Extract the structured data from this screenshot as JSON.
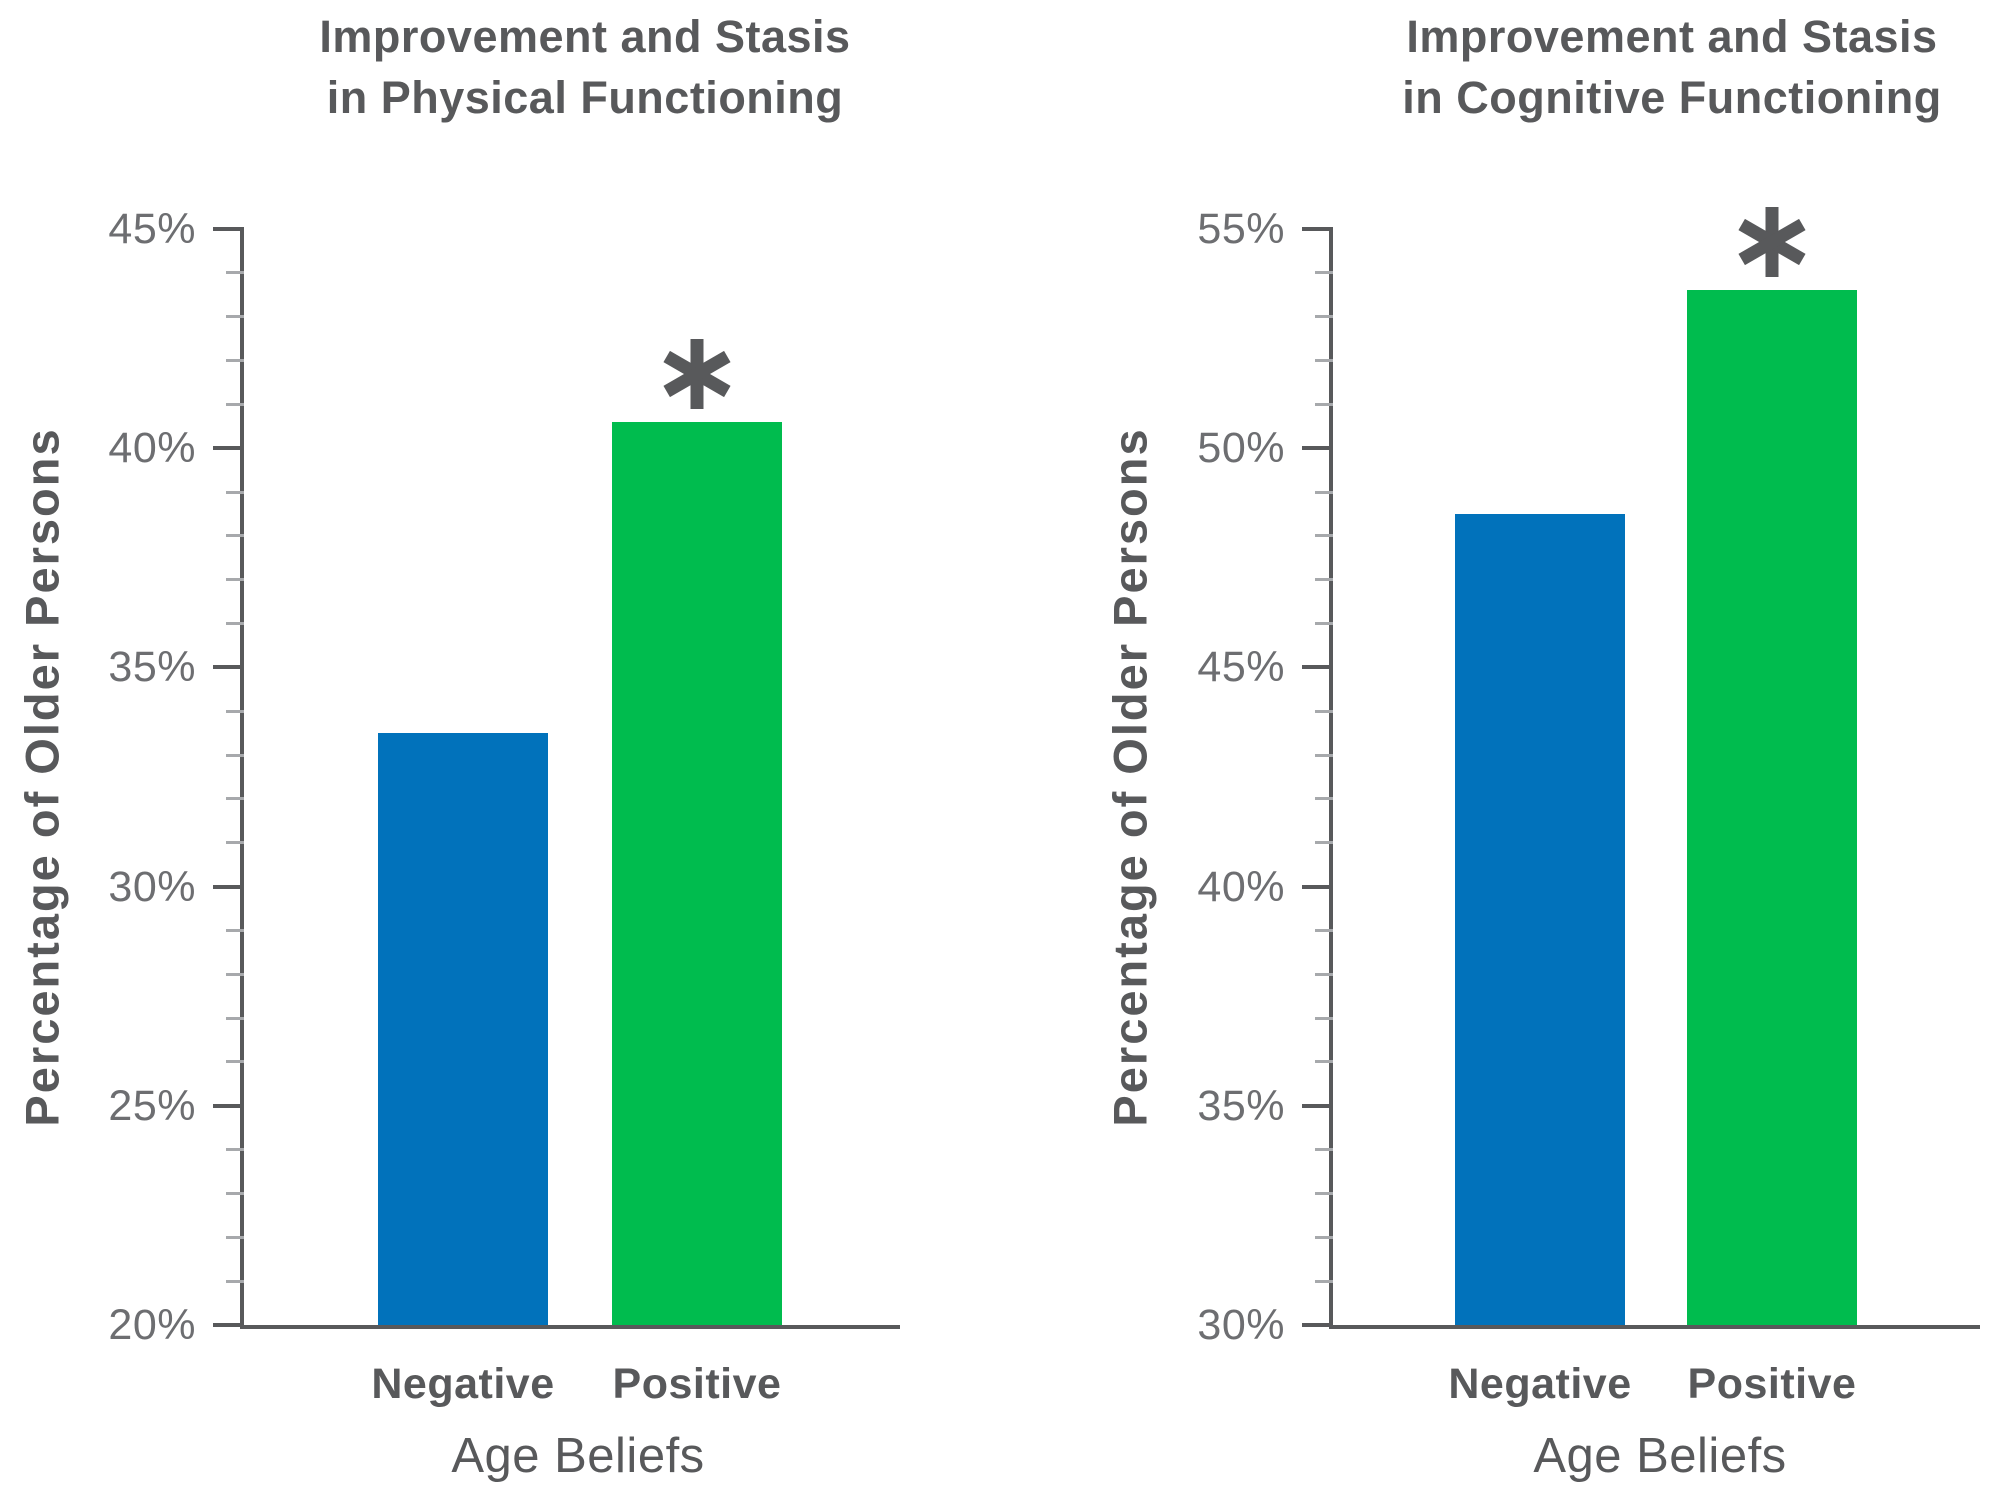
{
  "palette": {
    "bar_blue": "#0172BB",
    "bar_green": "#00BC4E",
    "axis_gray": "#58595B",
    "major_tick_gray": "#58595B",
    "minor_tick_gray": "#A7A9AC",
    "tick_label_gray": "#6D6E71",
    "text_gray": "#58595B"
  },
  "chart_data": [
    {
      "type": "bar",
      "title": "Improvement and Stasis in Physical Functioning",
      "title_lines": [
        "Improvement and Stasis",
        "in Physical Functioning"
      ],
      "xlabel": "Age Beliefs",
      "ylabel": "Percentage of Older Persons",
      "categories": [
        "Negative",
        "Positive"
      ],
      "values": [
        33.5,
        40.6
      ],
      "ylim": [
        20,
        45
      ],
      "ytick_interval": 5,
      "yminor_interval": 1,
      "ytick_labels": [
        "20%",
        "25%",
        "30%",
        "35%",
        "40%",
        "45%"
      ],
      "bar_colors": [
        "#0172BB",
        "#00BC4E"
      ],
      "significance": [
        {
          "category": "Positive",
          "symbol": "*"
        }
      ],
      "grid": false,
      "legend": false
    },
    {
      "type": "bar",
      "title": "Improvement and Stasis in Cognitive Functioning",
      "title_lines": [
        "Improvement and Stasis",
        "in Cognitive Functioning"
      ],
      "xlabel": "Age Beliefs",
      "ylabel": "Percentage of Older Persons",
      "categories": [
        "Negative",
        "Positive"
      ],
      "values": [
        48.5,
        53.6
      ],
      "ylim": [
        30,
        55
      ],
      "ytick_interval": 5,
      "yminor_interval": 1,
      "ytick_labels": [
        "30%",
        "35%",
        "40%",
        "45%",
        "50%",
        "55%"
      ],
      "bar_colors": [
        "#0172BB",
        "#00BC4E"
      ],
      "significance": [
        {
          "category": "Positive",
          "symbol": "*"
        }
      ],
      "grid": false,
      "legend": false
    }
  ]
}
